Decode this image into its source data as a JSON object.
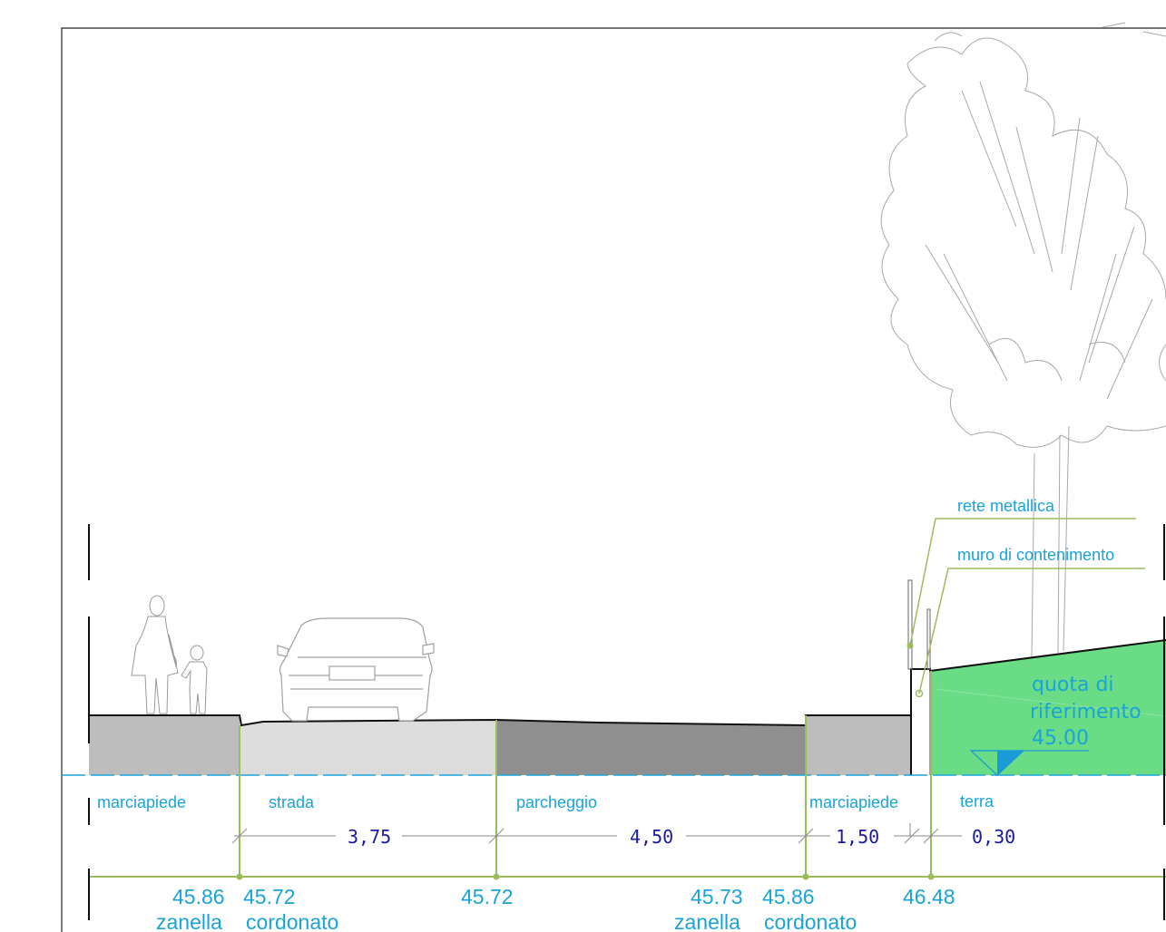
{
  "zones": {
    "marciapiede_left": "marciapiede",
    "strada": "strada",
    "parcheggio": "parcheggio",
    "marciapiede_right": "marciapiede",
    "terra": "terra"
  },
  "dimensions": [
    "3,75",
    "4,50",
    "1,50",
    "0,30"
  ],
  "elevations": [
    "45.86",
    "45.72",
    "45.72",
    "45.73",
    "45.86",
    "46.48"
  ],
  "elevation_labels": {
    "zanella_left": "zanella",
    "cordonato_left": "cordonato",
    "zanella_right": "zanella",
    "cordonato_right": "cordonato"
  },
  "callouts": {
    "rete": "rete metallica",
    "muro": "muro di contenimento"
  },
  "reference": {
    "line1": "quota di",
    "line2": "riferimento",
    "value": "45.00"
  },
  "colors": {
    "accent_text": "#1aa3d9",
    "dimension_text": "#1a1aa0",
    "leader_green": "#9cbb5a",
    "ground_green": "#6adc86",
    "reference_marker": "#1a9ad6"
  }
}
